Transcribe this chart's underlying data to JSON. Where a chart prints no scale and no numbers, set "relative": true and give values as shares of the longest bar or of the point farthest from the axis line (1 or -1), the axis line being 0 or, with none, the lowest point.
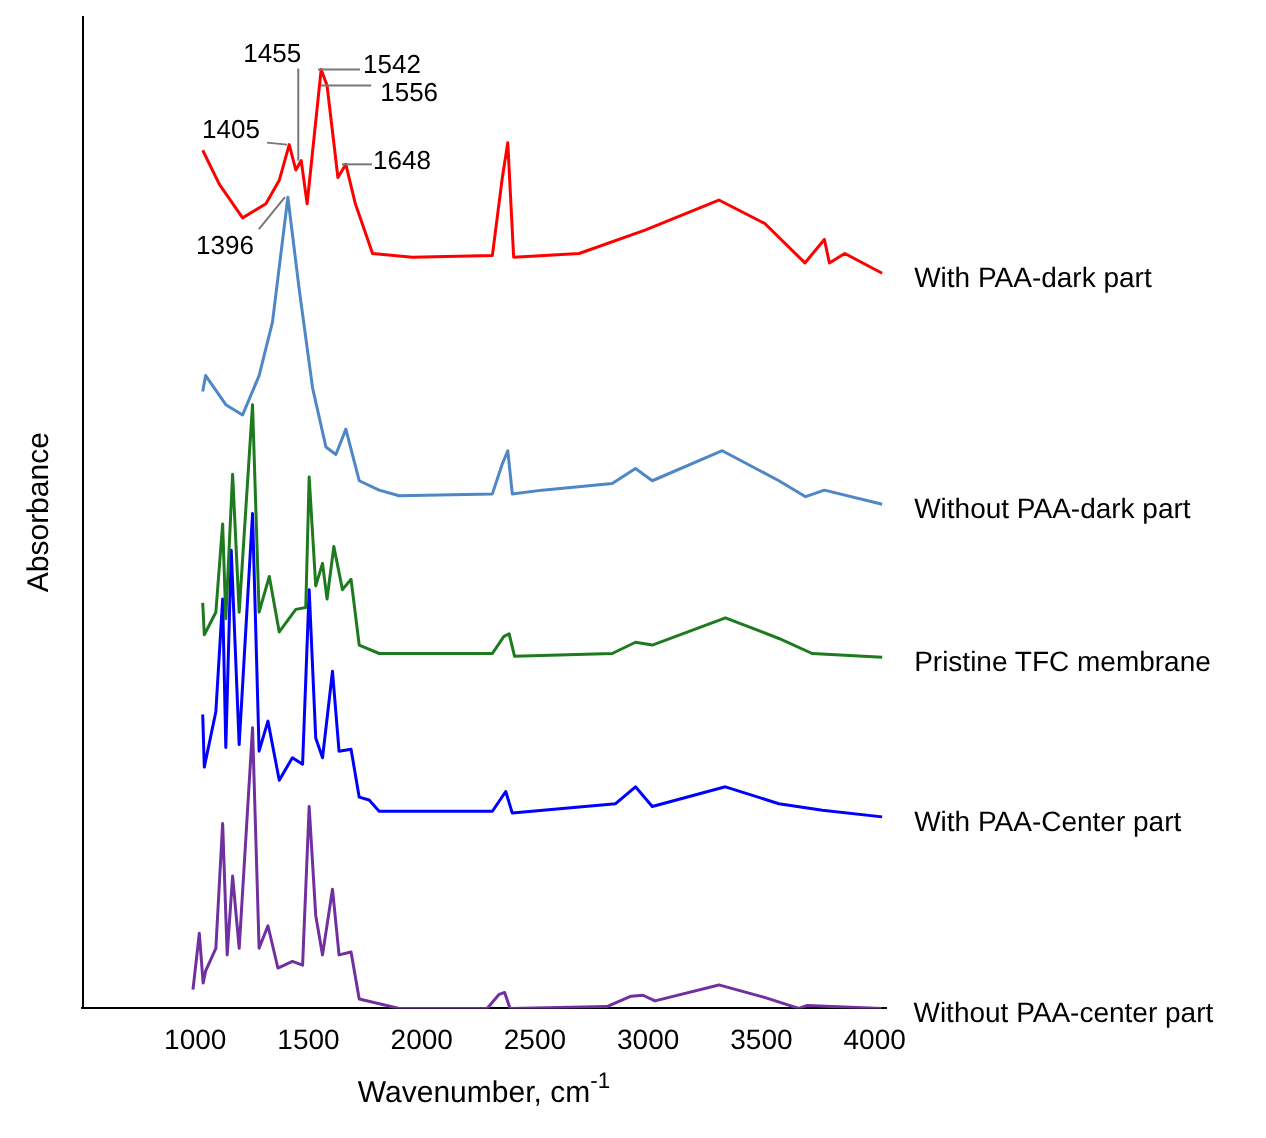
{
  "chart_data": {
    "type": "line",
    "relative": true,
    "xlabel": "Wavenumber, cm$^{-1}$",
    "ylabel": "Absorbance",
    "xlim": [
      500,
      4050
    ],
    "xticks": [
      1000,
      1500,
      2000,
      2500,
      3000,
      3500,
      4000
    ],
    "grid": false,
    "legend": false,
    "annotations": [
      {
        "text": "1405",
        "x": 1405,
        "y": 0.92
      },
      {
        "text": "1455",
        "x": 1455,
        "y": 0.903
      },
      {
        "text": "1542",
        "x": 1542,
        "y": 1.0
      },
      {
        "text": "1556",
        "x": 1556,
        "y": 0.983
      },
      {
        "text": "1648",
        "x": 1648,
        "y": 0.899
      },
      {
        "text": "1396",
        "x": 1396,
        "y": 0.864
      }
    ],
    "series": [
      {
        "name": "With PAA-dark part",
        "color": "#ff0000",
        "x": [
          1033,
          1106,
          1209,
          1312,
          1371,
          1415,
          1444,
          1468,
          1494,
          1556,
          1582,
          1630,
          1665,
          1707,
          1783,
          1959,
          2312,
          2356,
          2380,
          2406,
          2695,
          2986,
          3312,
          3515,
          3692,
          3778,
          3800,
          3868,
          4033
        ],
        "values": [
          0.914,
          0.878,
          0.842,
          0.857,
          0.882,
          0.92,
          0.893,
          0.903,
          0.857,
          1.0,
          0.983,
          0.885,
          0.899,
          0.857,
          0.804,
          0.8,
          0.802,
          0.885,
          0.922,
          0.8,
          0.804,
          0.829,
          0.861,
          0.836,
          0.794,
          0.819,
          0.794,
          0.804,
          0.783
        ]
      },
      {
        "name": "Without PAA-dark part",
        "color": "#4f86c6",
        "x": [
          1033,
          1046,
          1135,
          1209,
          1282,
          1341,
          1409,
          1459,
          1518,
          1577,
          1621,
          1665,
          1724,
          1812,
          1900,
          2312,
          2356,
          2380,
          2400,
          2532,
          2841,
          2944,
          3018,
          3327,
          3577,
          3695,
          3778,
          4033
        ],
        "values": [
          0.657,
          0.674,
          0.643,
          0.632,
          0.674,
          0.731,
          0.864,
          0.766,
          0.661,
          0.598,
          0.59,
          0.617,
          0.562,
          0.552,
          0.546,
          0.548,
          0.58,
          0.594,
          0.548,
          0.552,
          0.559,
          0.575,
          0.562,
          0.594,
          0.562,
          0.545,
          0.552,
          0.537
        ]
      },
      {
        "name": "Pristine TFC membrane",
        "color": "#1e7a1e",
        "x": [
          1033,
          1040,
          1091,
          1121,
          1135,
          1165,
          1194,
          1253,
          1282,
          1327,
          1371,
          1444,
          1488,
          1503,
          1532,
          1562,
          1582,
          1612,
          1650,
          1688,
          1724,
          1812,
          2312,
          2362,
          2386,
          2410,
          2841,
          2944,
          3018,
          3341,
          3577,
          3724,
          4033
        ],
        "values": [
          0.432,
          0.398,
          0.422,
          0.516,
          0.415,
          0.569,
          0.422,
          0.643,
          0.422,
          0.46,
          0.401,
          0.425,
          0.427,
          0.566,
          0.45,
          0.474,
          0.436,
          0.492,
          0.446,
          0.457,
          0.387,
          0.378,
          0.378,
          0.396,
          0.399,
          0.375,
          0.378,
          0.39,
          0.387,
          0.416,
          0.394,
          0.378,
          0.374
        ]
      },
      {
        "name": "With PAA-Center part",
        "color": "#0000ff",
        "x": [
          1033,
          1040,
          1091,
          1121,
          1135,
          1159,
          1194,
          1253,
          1282,
          1321,
          1371,
          1429,
          1474,
          1503,
          1532,
          1562,
          1606,
          1635,
          1688,
          1724,
          1768,
          1812,
          2312,
          2371,
          2400,
          2856,
          2885,
          2944,
          3018,
          3341,
          3577,
          3769,
          4033
        ],
        "values": [
          0.313,
          0.257,
          0.316,
          0.436,
          0.278,
          0.488,
          0.281,
          0.527,
          0.274,
          0.306,
          0.243,
          0.267,
          0.26,
          0.446,
          0.288,
          0.267,
          0.359,
          0.274,
          0.276,
          0.225,
          0.222,
          0.21,
          0.21,
          0.231,
          0.208,
          0.218,
          0.224,
          0.236,
          0.215,
          0.236,
          0.218,
          0.211,
          0.204
        ]
      },
      {
        "name": "Without PAA-center part",
        "color": "#7030a0",
        "x": [
          990,
          1018,
          1035,
          1046,
          1091,
          1121,
          1141,
          1165,
          1194,
          1253,
          1282,
          1321,
          1365,
          1429,
          1474,
          1503,
          1532,
          1562,
          1606,
          1635,
          1688,
          1724,
          1900,
          2289,
          2342,
          2366,
          2390,
          2818,
          2924,
          2977,
          3030,
          3312,
          3524,
          3665,
          3700,
          4030
        ],
        "values": [
          0.02,
          0.08,
          0.027,
          0.04,
          0.064,
          0.197,
          0.057,
          0.141,
          0.064,
          0.299,
          0.064,
          0.088,
          0.043,
          0.05,
          0.046,
          0.215,
          0.099,
          0.057,
          0.127,
          0.057,
          0.06,
          0.01,
          0,
          0,
          0.015,
          0.017,
          0,
          0.002,
          0.013,
          0.014,
          0.008,
          0.025,
          0.011,
          0,
          0.003,
          0
        ]
      }
    ]
  }
}
